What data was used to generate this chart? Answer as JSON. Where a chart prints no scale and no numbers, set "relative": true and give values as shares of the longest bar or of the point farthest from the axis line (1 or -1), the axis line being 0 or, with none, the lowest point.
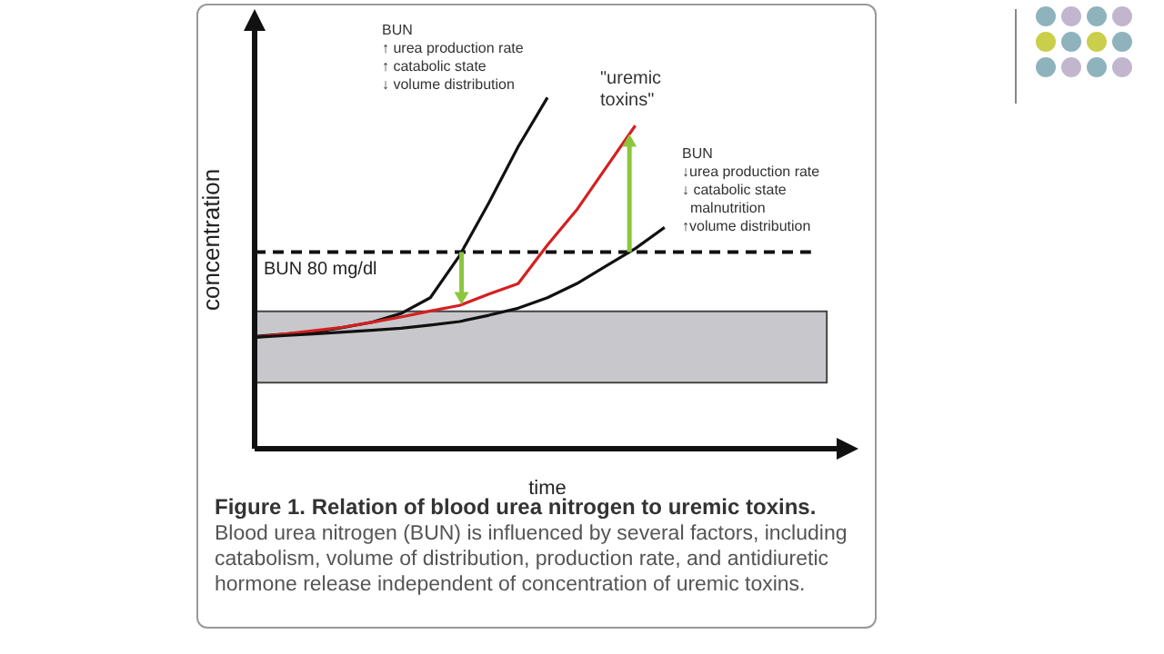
{
  "chart_data": {
    "type": "line",
    "title": "Figure 1. Relation of blood urea nitrogen to uremic toxins.",
    "subtitle": "Blood urea nitrogen (BUN) is influenced by several factors, including catabolism, volume of distribution, production rate, and antidiuretic hormone release independent of concentration of uremic toxins.",
    "xlabel": "time",
    "ylabel": "concentration",
    "relative": true,
    "grid": false,
    "legend": false,
    "marker": "none",
    "line_style": "solid",
    "categories": [
      null,
      null,
      null,
      null,
      null,
      null,
      null,
      null,
      null,
      null,
      null,
      null,
      null,
      null,
      null,
      null,
      null,
      null,
      null,
      null,
      null
    ],
    "series": [
      {
        "color": "#111111",
        "values": [
          0.32,
          0.326,
          0.332,
          0.345,
          0.36,
          0.385,
          0.43,
          0.55,
          0.7,
          0.86,
          1.0,
          null,
          null,
          null,
          null,
          null,
          null,
          null,
          null,
          null,
          null
        ]
      },
      {
        "color": "#d42020",
        "values": [
          0.317,
          0.326,
          0.336,
          0.346,
          0.36,
          0.375,
          0.392,
          0.408,
          0.44,
          0.47,
          0.58,
          0.68,
          0.8,
          0.92,
          null,
          null,
          null,
          null,
          null,
          null,
          null
        ]
      },
      {
        "color": "#111111",
        "values": [
          0.317,
          0.322,
          0.327,
          0.332,
          0.337,
          0.343,
          0.352,
          0.362,
          0.38,
          0.4,
          0.43,
          0.47,
          0.52,
          0.57,
          0.63,
          null,
          null,
          null,
          null,
          null,
          null
        ]
      }
    ],
    "ref_lines": [
      {
        "axis": "y",
        "value": 0.56,
        "label": "BUN 80 mg/dl",
        "color": "#111111",
        "line_style": "dashed"
      }
    ],
    "bands": [
      {
        "axis": "y",
        "from": 0.188,
        "to": 0.391,
        "color": "#c8c8cc"
      }
    ],
    "annotations": [
      "BUN\n↑ urea production rate\n↑ catabolic state\n↓ volume distribution",
      "\"uremic\ntoxins\"",
      "BUN\n↓urea production rate\n↓ catabolic state\n  malnutrition\n↑volume distribution"
    ]
  }
}
